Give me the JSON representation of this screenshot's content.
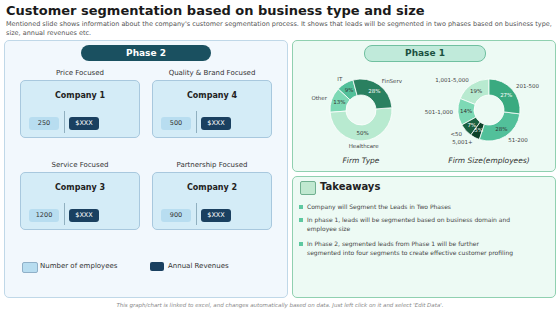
{
  "title": "Customer segmentation based on business type and size",
  "subtitle": "Mentioned slide shows information about the company's customer segmentation process. It shows that leads will be segmented in two phases based on business type, size, annual revenues etc.",
  "annotations": [
    "Phase 2",
    "Phase 1",
    "Price Focused",
    "Company 1",
    250,
    "$XXX",
    "Quality & Brand Focused",
    "Company 4",
    500,
    "$XXX",
    "Service Focused",
    "Company 3",
    1200,
    "$XXX",
    "Partnership Focused",
    "Company 2",
    900,
    "$XXX",
    "Number of employees",
    "Annual Revenues",
    "Takeaways",
    "Company will Segment the Leads in Two Phases",
    "In phase 1, leads will be segmented based on business domain and\nemployee size",
    "In Phase 2, segmented leads from Phase 1 will be further\nsegmented into four segments to create effective customer profiling",
    "This graph/chart is linked to excel, and changes automatically based on data. Just left click on it and select 'Edit Data'."
  ],
  "chart_data": [
    {
      "type": "pie",
      "title": "Firm Type",
      "categories": [
        "IT",
        "Other",
        "Healthcare",
        "FinServ"
      ],
      "values": [
        9,
        13,
        50,
        28
      ],
      "value_labels": [
        "9%",
        "13%",
        "50%",
        "28%"
      ],
      "colors": [
        "#52c09a",
        "#7dd9b5",
        "#b8ead0",
        "#2a8060"
      ],
      "data_labels": true
    },
    {
      "type": "pie",
      "title": "Firm Size(employees)",
      "categories": [
        "1,001-5,000",
        "501-1,000",
        "<50",
        "5,001+",
        "51-200",
        "201-500"
      ],
      "values": [
        19,
        14,
        7,
        5,
        28,
        27
      ],
      "value_labels": [
        "19%",
        "14%",
        "7%",
        "5%",
        "28%",
        "27%"
      ],
      "colors": [
        "#b8ead0",
        "#7dd9b5",
        "#1a6040",
        "#0d4028",
        "#52c09a",
        "#3aaa80"
      ],
      "data_labels": true
    }
  ]
}
